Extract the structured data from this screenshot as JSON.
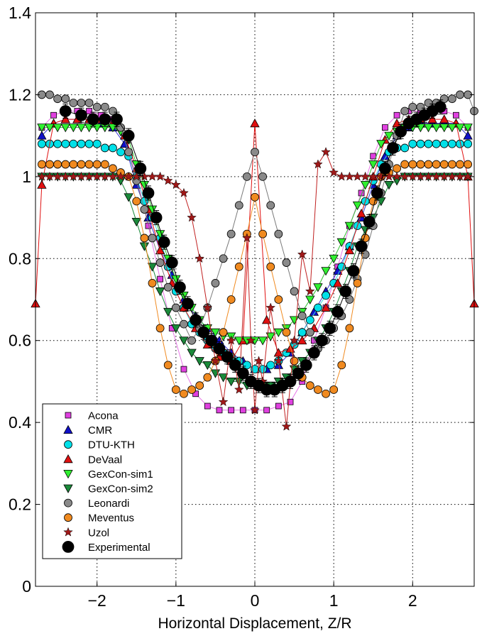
{
  "chart_data": {
    "type": "line",
    "title": "",
    "xlabel": "Horizontal Displacement, Z/R",
    "ylabel": "",
    "xlim": [
      -2.78,
      2.78
    ],
    "ylim": [
      0,
      1.4
    ],
    "xticks": [
      {
        "value": -2,
        "label": "−2"
      },
      {
        "value": -1,
        "label": "−1"
      },
      {
        "value": 0,
        "label": "0"
      },
      {
        "value": 1,
        "label": "1"
      },
      {
        "value": 2,
        "label": "2"
      }
    ],
    "yticks": [
      {
        "value": 0,
        "label": "0"
      },
      {
        "value": 0.2,
        "label": "0.2"
      },
      {
        "value": 0.4,
        "label": "0.4"
      },
      {
        "value": 0.6,
        "label": "0.6"
      },
      {
        "value": 0.8,
        "label": "0.8"
      },
      {
        "value": 1.0,
        "label": "1"
      },
      {
        "value": 1.2,
        "label": "1.2"
      },
      {
        "value": 1.4,
        "label": "1.4"
      }
    ],
    "grid": true,
    "legend_position": "lower-left",
    "series": [
      {
        "name": "Acona",
        "marker": "square",
        "color": "#e040e0",
        "line_color": "#e878e8",
        "x": [
          -2.7,
          -2.55,
          -2.4,
          -2.25,
          -2.1,
          -1.95,
          -1.8,
          -1.65,
          -1.5,
          -1.35,
          -1.2,
          -1.05,
          -0.9,
          -0.75,
          -0.6,
          -0.45,
          -0.3,
          -0.15,
          0,
          0.15,
          0.3,
          0.45,
          0.6,
          0.75,
          0.9,
          1.05,
          1.2,
          1.35,
          1.5,
          1.65,
          1.8,
          1.95,
          2.1,
          2.25,
          2.4,
          2.55,
          2.7
        ],
        "y": [
          1.12,
          1.15,
          1.16,
          1.16,
          1.16,
          1.15,
          1.14,
          1.1,
          1.0,
          0.88,
          0.75,
          0.63,
          0.53,
          0.47,
          0.44,
          0.43,
          0.43,
          0.43,
          0.43,
          0.43,
          0.44,
          0.45,
          0.5,
          0.6,
          0.68,
          0.78,
          0.88,
          0.96,
          1.05,
          1.12,
          1.15,
          1.16,
          1.16,
          1.16,
          1.16,
          1.15,
          1.12
        ]
      },
      {
        "name": "CMR",
        "marker": "triangle-up",
        "color": "#1010c8",
        "line_color": "#3a3ad8",
        "x": [
          -2.7,
          -2.55,
          -2.4,
          -2.25,
          -2.1,
          -1.95,
          -1.8,
          -1.65,
          -1.5,
          -1.35,
          -1.2,
          -1.05,
          -0.9,
          -0.75,
          -0.6,
          -0.45,
          -0.3,
          -0.15,
          0,
          0.15,
          0.3,
          0.45,
          0.6,
          0.75,
          0.9,
          1.05,
          1.2,
          1.35,
          1.5,
          1.65,
          1.8,
          1.95,
          2.1,
          2.25,
          2.4,
          2.55,
          2.7
        ],
        "y": [
          1.1,
          1.13,
          1.14,
          1.14,
          1.14,
          1.13,
          1.12,
          1.08,
          0.98,
          0.9,
          0.82,
          0.76,
          0.7,
          0.66,
          0.63,
          0.6,
          0.57,
          0.55,
          0.53,
          0.53,
          0.54,
          0.57,
          0.62,
          0.67,
          0.72,
          0.77,
          0.83,
          0.9,
          0.98,
          1.05,
          1.1,
          1.12,
          1.13,
          1.13,
          1.13,
          1.13,
          1.1
        ]
      },
      {
        "name": "DTU-KTH",
        "marker": "circle",
        "color": "#00e0e8",
        "line_color": "#40d8e0",
        "x": [
          -2.7,
          -2.6,
          -2.5,
          -2.4,
          -2.3,
          -2.2,
          -2.1,
          -2.0,
          -1.9,
          -1.8,
          -1.7,
          -1.6,
          -1.5,
          -1.4,
          -1.3,
          -1.2,
          -1.1,
          -1.0,
          -0.9,
          -0.8,
          -0.7,
          -0.6,
          -0.5,
          -0.4,
          -0.3,
          -0.2,
          -0.1,
          0,
          0.1,
          0.2,
          0.3,
          0.4,
          0.5,
          0.6,
          0.7,
          0.8,
          0.9,
          1.0,
          1.1,
          1.2,
          1.3,
          1.4,
          1.5,
          1.6,
          1.7,
          1.8,
          1.9,
          2.0,
          2.1,
          2.2,
          2.3,
          2.4,
          2.5,
          2.6,
          2.7
        ],
        "y": [
          1.08,
          1.08,
          1.08,
          1.08,
          1.08,
          1.08,
          1.08,
          1.08,
          1.07,
          1.07,
          1.06,
          1.05,
          1.0,
          0.94,
          0.9,
          0.85,
          0.78,
          0.72,
          0.68,
          0.64,
          0.62,
          0.6,
          0.58,
          0.57,
          0.56,
          0.55,
          0.54,
          0.53,
          0.53,
          0.54,
          0.55,
          0.57,
          0.59,
          0.62,
          0.65,
          0.68,
          0.71,
          0.74,
          0.78,
          0.83,
          0.88,
          0.94,
          0.99,
          1.03,
          1.06,
          1.07,
          1.07,
          1.08,
          1.08,
          1.08,
          1.08,
          1.08,
          1.08,
          1.08,
          1.08
        ]
      },
      {
        "name": "DeVaal",
        "marker": "triangle-up",
        "color": "#e01010",
        "line_color": "#e01010",
        "x": [
          -2.78,
          -2.7,
          -2.55,
          -2.4,
          -2.25,
          -2.1,
          -1.95,
          -1.8,
          -1.65,
          -1.5,
          -1.35,
          -1.2,
          -1.05,
          -0.9,
          -0.75,
          -0.6,
          -0.45,
          -0.3,
          -0.15,
          0,
          0.15,
          0.3,
          0.45,
          0.6,
          0.75,
          0.9,
          1.05,
          1.2,
          1.35,
          1.5,
          1.65,
          1.8,
          1.95,
          2.1,
          2.25,
          2.4,
          2.55,
          2.7,
          2.78
        ],
        "y": [
          0.69,
          0.98,
          1.13,
          1.14,
          1.14,
          1.14,
          1.14,
          1.13,
          1.1,
          1.02,
          0.92,
          0.82,
          0.74,
          0.68,
          0.63,
          0.59,
          0.56,
          0.55,
          0.6,
          1.13,
          0.65,
          0.57,
          0.58,
          0.6,
          0.63,
          0.68,
          0.74,
          0.82,
          0.91,
          1.0,
          1.09,
          1.13,
          1.14,
          1.14,
          1.14,
          1.14,
          1.13,
          1.0,
          0.69
        ]
      },
      {
        "name": "GexCon-sim1",
        "marker": "triangle-down",
        "color": "#30f030",
        "line_color": "#30c030",
        "x": [
          -2.7,
          -2.6,
          -2.5,
          -2.4,
          -2.3,
          -2.2,
          -2.1,
          -2.0,
          -1.9,
          -1.8,
          -1.7,
          -1.6,
          -1.5,
          -1.4,
          -1.3,
          -1.2,
          -1.1,
          -1.0,
          -0.9,
          -0.8,
          -0.7,
          -0.6,
          -0.5,
          -0.4,
          -0.3,
          -0.2,
          -0.1,
          0,
          0.1,
          0.2,
          0.3,
          0.4,
          0.5,
          0.6,
          0.7,
          0.8,
          0.9,
          1.0,
          1.1,
          1.2,
          1.3,
          1.4,
          1.5,
          1.6,
          1.7,
          1.8,
          1.9,
          2.0,
          2.1,
          2.2,
          2.3,
          2.4,
          2.5,
          2.6,
          2.7
        ],
        "y": [
          1.12,
          1.12,
          1.12,
          1.12,
          1.12,
          1.12,
          1.12,
          1.12,
          1.12,
          1.12,
          1.11,
          1.09,
          1.03,
          0.98,
          0.92,
          0.86,
          0.8,
          0.75,
          0.71,
          0.68,
          0.65,
          0.63,
          0.62,
          0.61,
          0.61,
          0.6,
          0.6,
          0.6,
          0.6,
          0.61,
          0.62,
          0.63,
          0.65,
          0.67,
          0.7,
          0.73,
          0.77,
          0.8,
          0.84,
          0.88,
          0.93,
          0.98,
          1.03,
          1.08,
          1.1,
          1.11,
          1.12,
          1.12,
          1.12,
          1.12,
          1.12,
          1.12,
          1.12,
          1.12,
          1.12
        ]
      },
      {
        "name": "GexCon-sim2",
        "marker": "triangle-down",
        "color": "#1a8a3a",
        "line_color": "#1a8a3a",
        "x": [
          -2.7,
          -2.6,
          -2.5,
          -2.4,
          -2.3,
          -2.2,
          -2.1,
          -2.0,
          -1.9,
          -1.8,
          -1.7,
          -1.6,
          -1.5,
          -1.4,
          -1.3,
          -1.2,
          -1.1,
          -1.0,
          -0.9,
          -0.8,
          -0.7,
          -0.6,
          -0.5,
          -0.4,
          -0.3,
          -0.2,
          -0.1,
          0,
          0.1,
          0.2,
          0.3,
          0.4,
          0.5,
          0.6,
          0.7,
          0.8,
          0.9,
          1.0,
          1.1,
          1.2,
          1.3,
          1.4,
          1.5,
          1.6,
          1.7,
          1.8,
          1.9,
          2.0,
          2.1,
          2.2,
          2.3,
          2.4,
          2.5,
          2.6,
          2.7
        ],
        "y": [
          1.0,
          1.0,
          1.0,
          1.0,
          1.0,
          1.0,
          1.0,
          1.0,
          1.0,
          1.0,
          0.99,
          0.95,
          0.89,
          0.83,
          0.78,
          0.72,
          0.67,
          0.63,
          0.6,
          0.57,
          0.55,
          0.54,
          0.52,
          0.51,
          0.5,
          0.5,
          0.49,
          0.49,
          0.49,
          0.49,
          0.5,
          0.51,
          0.53,
          0.55,
          0.57,
          0.6,
          0.63,
          0.67,
          0.72,
          0.77,
          0.83,
          0.87,
          0.9,
          0.94,
          0.98,
          0.99,
          1.0,
          1.0,
          1.0,
          1.0,
          1.0,
          1.0,
          1.0,
          1.0,
          1.0
        ]
      },
      {
        "name": "Leonardi",
        "marker": "circle",
        "color": "#8a8a8a",
        "line_color": "#7a7a7a",
        "x": [
          -2.7,
          -2.6,
          -2.5,
          -2.4,
          -2.3,
          -2.2,
          -2.1,
          -2.0,
          -1.9,
          -1.8,
          -1.7,
          -1.6,
          -1.5,
          -1.4,
          -1.3,
          -1.2,
          -1.1,
          -1.0,
          -0.9,
          -0.8,
          -0.7,
          -0.6,
          -0.5,
          -0.4,
          -0.3,
          -0.2,
          -0.1,
          0,
          0.1,
          0.2,
          0.3,
          0.4,
          0.5,
          0.6,
          0.7,
          0.8,
          0.9,
          1.0,
          1.1,
          1.2,
          1.3,
          1.4,
          1.5,
          1.6,
          1.7,
          1.8,
          1.9,
          2.0,
          2.1,
          2.2,
          2.3,
          2.4,
          2.5,
          2.6,
          2.7,
          2.78
        ],
        "y": [
          1.2,
          1.2,
          1.19,
          1.19,
          1.18,
          1.18,
          1.18,
          1.17,
          1.17,
          1.16,
          1.12,
          1.06,
          0.99,
          0.92,
          0.85,
          0.79,
          0.73,
          0.68,
          0.64,
          0.6,
          0.63,
          0.68,
          0.74,
          0.8,
          0.86,
          0.93,
          1.0,
          1.06,
          1.0,
          0.93,
          0.86,
          0.79,
          0.72,
          0.66,
          0.62,
          0.58,
          0.6,
          0.63,
          0.66,
          0.7,
          0.75,
          0.81,
          0.88,
          0.96,
          1.03,
          1.1,
          1.16,
          1.17,
          1.17,
          1.18,
          1.18,
          1.19,
          1.19,
          1.2,
          1.2,
          1.16
        ]
      },
      {
        "name": "Meventus",
        "marker": "circle",
        "color": "#f08a20",
        "line_color": "#f08a20",
        "x": [
          -2.7,
          -2.6,
          -2.5,
          -2.4,
          -2.3,
          -2.2,
          -2.1,
          -2.0,
          -1.9,
          -1.8,
          -1.7,
          -1.6,
          -1.5,
          -1.4,
          -1.3,
          -1.2,
          -1.1,
          -1.0,
          -0.9,
          -0.8,
          -0.7,
          -0.6,
          -0.5,
          -0.4,
          -0.3,
          -0.2,
          -0.1,
          0,
          0.1,
          0.2,
          0.3,
          0.4,
          0.5,
          0.6,
          0.7,
          0.8,
          0.9,
          1.0,
          1.1,
          1.2,
          1.3,
          1.4,
          1.5,
          1.6,
          1.7,
          1.8,
          1.9,
          2.0,
          2.1,
          2.2,
          2.3,
          2.4,
          2.5,
          2.6,
          2.7
        ],
        "y": [
          1.03,
          1.03,
          1.03,
          1.03,
          1.03,
          1.03,
          1.03,
          1.03,
          1.03,
          1.02,
          1.01,
          1.0,
          0.94,
          0.85,
          0.74,
          0.63,
          0.54,
          0.48,
          0.47,
          0.48,
          0.49,
          0.51,
          0.55,
          0.62,
          0.7,
          0.78,
          0.86,
          0.95,
          0.86,
          0.78,
          0.7,
          0.62,
          0.55,
          0.51,
          0.49,
          0.48,
          0.47,
          0.48,
          0.54,
          0.63,
          0.74,
          0.85,
          0.94,
          1.0,
          1.01,
          1.02,
          1.03,
          1.03,
          1.03,
          1.03,
          1.03,
          1.03,
          1.03,
          1.03,
          1.03
        ]
      },
      {
        "name": "Uzol",
        "marker": "star",
        "color": "#a01818",
        "line_color": "#c02020",
        "x": [
          -2.7,
          -2.6,
          -2.5,
          -2.4,
          -2.3,
          -2.2,
          -2.1,
          -2.0,
          -1.9,
          -1.8,
          -1.7,
          -1.6,
          -1.5,
          -1.4,
          -1.3,
          -1.2,
          -1.1,
          -1.0,
          -0.9,
          -0.8,
          -0.7,
          -0.6,
          -0.5,
          -0.4,
          -0.3,
          -0.2,
          -0.1,
          -0.05,
          0,
          0.05,
          0.1,
          0.2,
          0.3,
          0.4,
          0.5,
          0.6,
          0.7,
          0.8,
          0.9,
          1.0,
          1.1,
          1.2,
          1.3,
          1.4,
          1.5,
          1.6,
          1.7,
          1.8,
          1.9,
          2.0,
          2.1,
          2.2,
          2.3,
          2.4,
          2.5,
          2.6,
          2.7
        ],
        "y": [
          1.0,
          1.0,
          1.0,
          1.0,
          1.0,
          1.0,
          1.0,
          1.0,
          1.0,
          1.0,
          1.0,
          1.0,
          1.0,
          1.0,
          1.0,
          1.0,
          0.99,
          0.98,
          0.96,
          0.9,
          0.8,
          0.68,
          0.55,
          0.45,
          0.6,
          0.48,
          0.85,
          0.6,
          0.43,
          0.55,
          0.5,
          0.68,
          0.55,
          0.39,
          0.6,
          0.81,
          0.72,
          1.03,
          1.06,
          1.01,
          1.0,
          1.0,
          1.0,
          1.0,
          1.0,
          1.0,
          1.0,
          1.0,
          1.0,
          1.0,
          1.0,
          1.0,
          1.0,
          1.0,
          1.0,
          1.0,
          1.0
        ]
      },
      {
        "name": "Experimental",
        "marker": "circle-large",
        "color": "#000000",
        "line_color": "#000000",
        "x": [
          -2.4,
          -2.2,
          -2.05,
          -1.9,
          -1.75,
          -1.6,
          -1.45,
          -1.35,
          -1.25,
          -1.15,
          -1.05,
          -0.95,
          -0.85,
          -0.75,
          -0.65,
          -0.55,
          -0.45,
          -0.35,
          -0.25,
          -0.15,
          -0.05,
          0.05,
          0.15,
          0.25,
          0.35,
          0.45,
          0.55,
          0.65,
          0.75,
          0.85,
          0.95,
          1.05,
          1.15,
          1.25,
          1.35,
          1.45,
          1.55,
          1.65,
          1.75,
          1.85,
          1.95,
          2.05,
          2.15,
          2.25,
          2.35
        ],
        "y": [
          1.16,
          1.15,
          1.14,
          1.14,
          1.14,
          1.1,
          1.02,
          0.96,
          0.9,
          0.84,
          0.79,
          0.73,
          0.69,
          0.65,
          0.62,
          0.6,
          0.58,
          0.56,
          0.54,
          0.52,
          0.5,
          0.49,
          0.48,
          0.48,
          0.49,
          0.5,
          0.52,
          0.54,
          0.57,
          0.6,
          0.63,
          0.67,
          0.72,
          0.77,
          0.83,
          0.89,
          0.96,
          1.02,
          1.07,
          1.11,
          1.13,
          1.14,
          1.15,
          1.16,
          1.17
        ],
        "error_bars": true
      }
    ]
  }
}
